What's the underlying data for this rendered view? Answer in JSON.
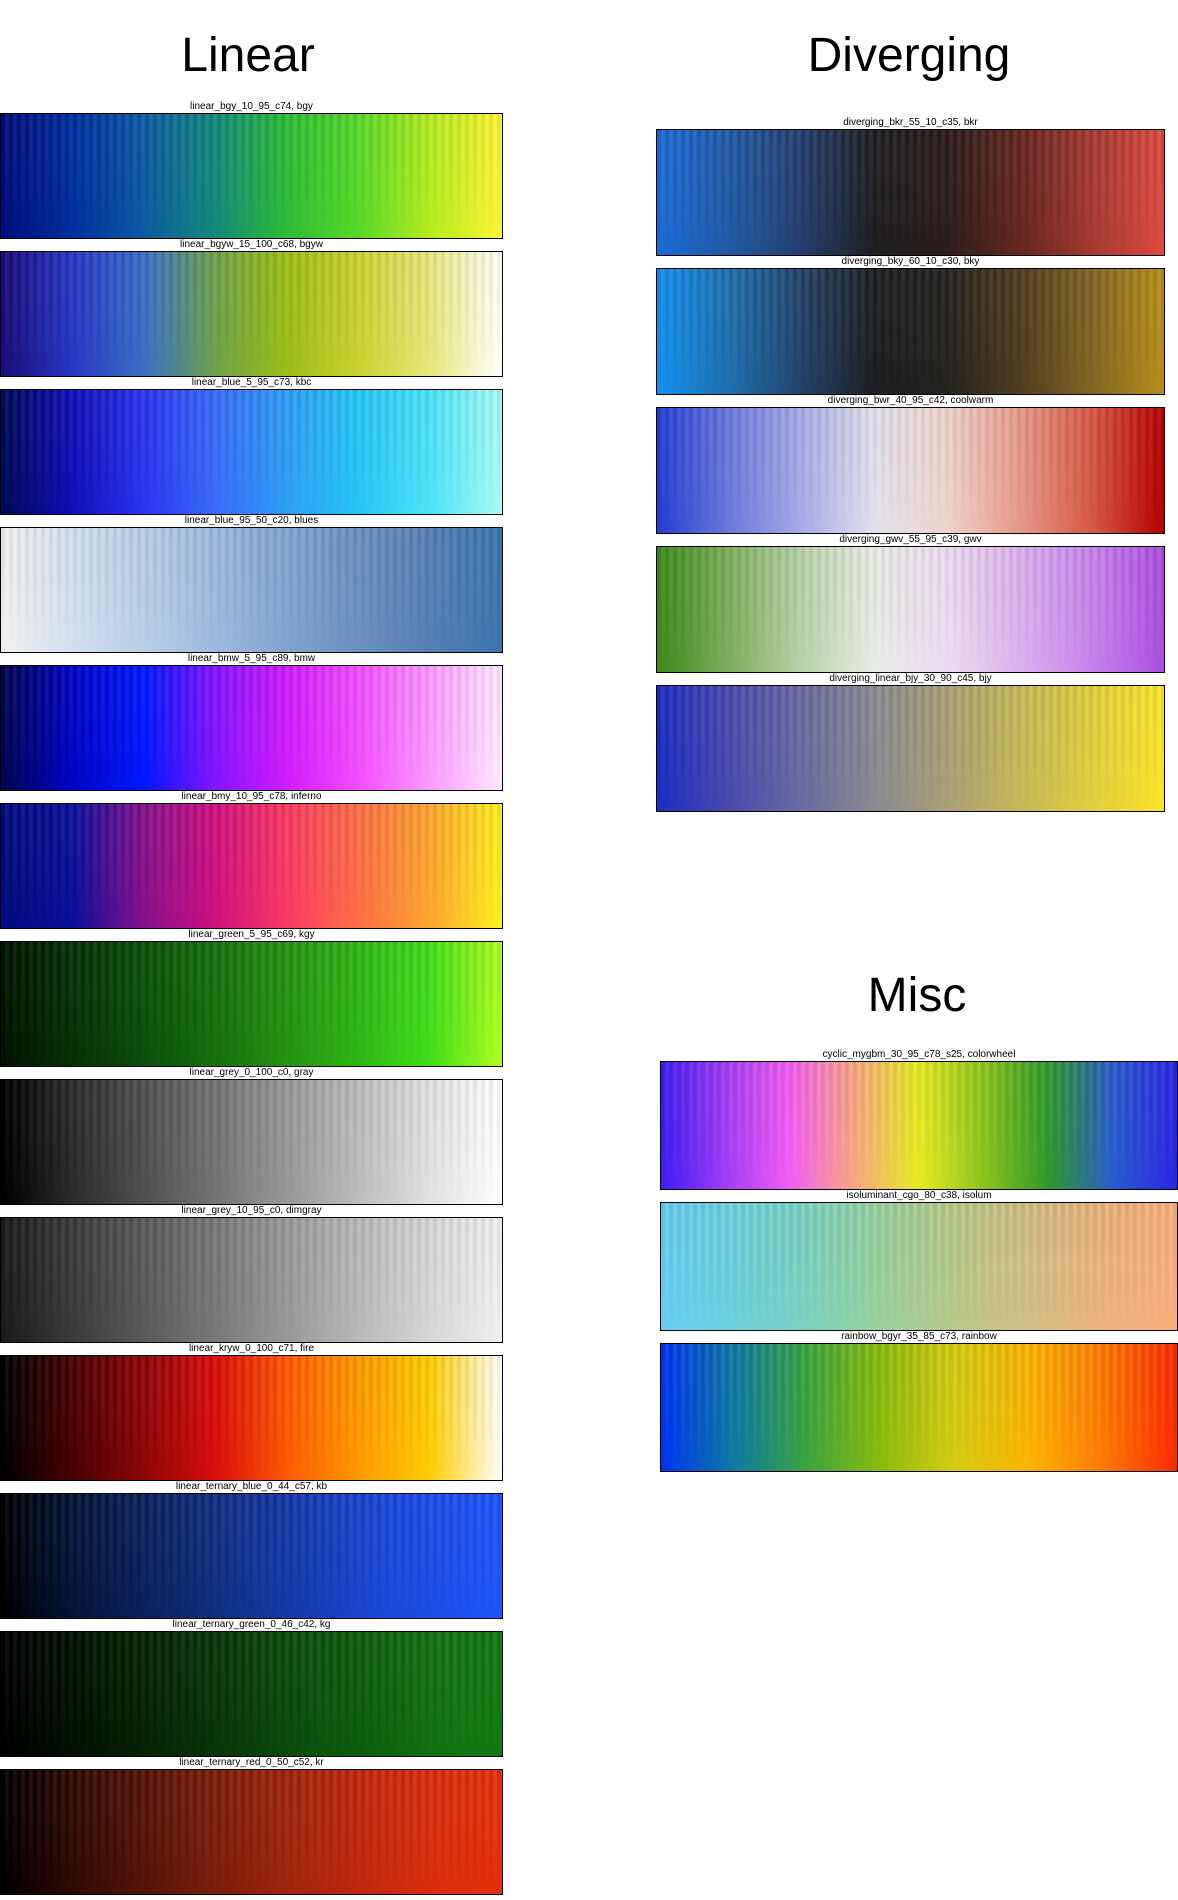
{
  "headings": {
    "linear": "Linear",
    "diverging": "Diverging",
    "misc": "Misc"
  },
  "groups": {
    "linear": [
      {
        "label": "linear_bgy_10_95_c74,  bgy",
        "colors": [
          "#000c7d",
          "#002f9f",
          "#0d5aa2",
          "#138a7c",
          "#2cbd36",
          "#58d92a",
          "#b6ec20",
          "#fcf535"
        ]
      },
      {
        "label": "linear_bgyw_15_100_c68,  bgyw",
        "colors": [
          "#1b0c7b",
          "#2738c4",
          "#3a6fc6",
          "#6da24a",
          "#9dbd17",
          "#cad331",
          "#e7e77d",
          "#fffffe"
        ]
      },
      {
        "label": "linear_blue_5_95_c73,  kbc",
        "colors": [
          "#000a55",
          "#1010b8",
          "#2a35f0",
          "#3a6cf8",
          "#2f9ef5",
          "#27c6f6",
          "#4ee3f8",
          "#a9fcf5"
        ]
      },
      {
        "label": "linear_blue_95_50_c20,  blues",
        "colors": [
          "#f1f1f1",
          "#d3dfef",
          "#b8cfe8",
          "#9cbade",
          "#81a4cf",
          "#6a90be",
          "#5680b4",
          "#3b75af"
        ]
      },
      {
        "label": "linear_bmw_5_95_c89,  bmw",
        "colors": [
          "#00054e",
          "#0005c4",
          "#0018ff",
          "#8514ff",
          "#d11cfc",
          "#f34eff",
          "#fa9bfe",
          "#feeafe"
        ]
      },
      {
        "label": "linear_bmy_10_95_c78,  inferno",
        "colors": [
          "#000c7d",
          "#0c0f9a",
          "#85118c",
          "#d0107f",
          "#fb3a63",
          "#fd6f46",
          "#fda630",
          "#fef020"
        ]
      },
      {
        "label": "linear_green_5_95_c69,  kgy",
        "colors": [
          "#011302",
          "#063205",
          "#0b5009",
          "#16700d",
          "#259311",
          "#2fb715",
          "#40df1a",
          "#b1fe1f"
        ]
      },
      {
        "label": "linear_grey_0_100_c0,  gray",
        "colors": [
          "#000000",
          "#2b2b2b",
          "#505050",
          "#747474",
          "#989898",
          "#bdbdbd",
          "#e2e2e2",
          "#ffffff"
        ]
      },
      {
        "label": "linear_grey_10_95_c0,  dimgray",
        "colors": [
          "#1b1b1b",
          "#3b3b3b",
          "#5a5a5a",
          "#797979",
          "#999999",
          "#b9b9b9",
          "#d7d7d7",
          "#f1f1f1"
        ]
      },
      {
        "label": "linear_kryw_0_100_c71,  fire",
        "colors": [
          "#000000",
          "#480202",
          "#8e0606",
          "#da0d0d",
          "#fe5a03",
          "#fe9a00",
          "#fece02",
          "#fffffd"
        ]
      },
      {
        "label": "linear_ternary_blue_0_44_c57,  kb",
        "colors": [
          "#000000",
          "#051539",
          "#0a225c",
          "#0f2f80",
          "#1439a8",
          "#1944cb",
          "#1c4ee8",
          "#1e55fb"
        ]
      },
      {
        "label": "linear_ternary_green_0_46_c42,  kg",
        "colors": [
          "#000000",
          "#021102",
          "#052305",
          "#083608",
          "#0b4a0b",
          "#0e5d0e",
          "#117011",
          "#127b12"
        ]
      },
      {
        "label": "linear_ternary_red_0_50_c52,  kr",
        "colors": [
          "#000000",
          "#2f0a04",
          "#551408",
          "#7b1e0b",
          "#9f250d",
          "#c0290d",
          "#d92d0c",
          "#e5300a"
        ]
      }
    ],
    "diverging": [
      {
        "label": "diverging_bkr_55_10_c35,  bkr",
        "colors": [
          "#1a6bd6",
          "#225aa5",
          "#253f6e",
          "#1f1f21",
          "#2d1d1c",
          "#64271f",
          "#a53a31",
          "#dd4a42"
        ]
      },
      {
        "label": "diverging_bky_60_10_c30,  bky",
        "colors": [
          "#1490ee",
          "#1f6fae",
          "#234369",
          "#1e1f22",
          "#242320",
          "#4f3d1e",
          "#836424",
          "#b68e1a"
        ]
      },
      {
        "label": "diverging_bwr_40_95_c42,  coolwarm",
        "colors": [
          "#253ed3",
          "#6b7adc",
          "#a9abe7",
          "#e1e1ec",
          "#efd3cc",
          "#e79a88",
          "#d55945",
          "#b60000"
        ]
      },
      {
        "label": "diverging_gwv_55_95_c39,  gwv",
        "colors": [
          "#3e8a1a",
          "#7daf5e",
          "#b9d2a8",
          "#e9ece5",
          "#ecdcf0",
          "#dcb1ee",
          "#c784ec",
          "#ac4ee0"
        ]
      },
      {
        "label": "diverging_linear_bjy_30_90_c45,  bjy",
        "colors": [
          "#1a2ec1",
          "#4b4aae",
          "#6a6ba0",
          "#8a8a91",
          "#a99f77",
          "#c6b85a",
          "#e1ce3f",
          "#fbe52a"
        ]
      }
    ],
    "misc": [
      {
        "label": "cyclic_mygbm_30_95_c78_s25,  colorwheel",
        "colors": [
          "#3c1df2",
          "#a33cf6",
          "#f35ef3",
          "#f9a881",
          "#e6ec22",
          "#8ec41e",
          "#2e9a2a",
          "#2a5ccc",
          "#2b25e5"
        ]
      },
      {
        "label": "isoluminant_cgo_80_c38,  isolum",
        "colors": [
          "#66cdf0",
          "#6dd1dc",
          "#7dd3c0",
          "#9bd19d",
          "#b9c98a",
          "#d3be85",
          "#ebb37f",
          "#fbae7c"
        ]
      },
      {
        "label": "rainbow_bgyr_35_85_c73,  rainbow",
        "colors": [
          "#0034f3",
          "#0f7ba0",
          "#3da53f",
          "#8ebb0d",
          "#d6cd12",
          "#fcb404",
          "#fd7a05",
          "#fc2a00"
        ]
      }
    ]
  }
}
